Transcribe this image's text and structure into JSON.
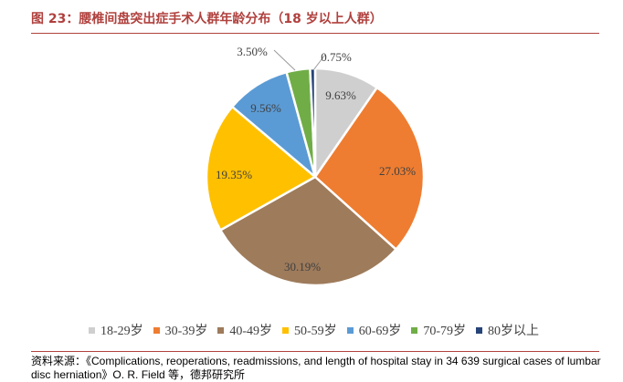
{
  "figure": {
    "title": "图 23：腰椎间盘突出症手术人群年龄分布（18 岁以上人群）",
    "source": "资料来源：《Complications, reoperations, readmissions, and length of hospital stay in 34 639 surgical cases of lumbar disc herniation》O. R. Field 等，德邦研究所"
  },
  "colors": {
    "title": "#b0413e",
    "label_text": "#404040"
  },
  "chart_data": {
    "type": "pie",
    "title": "",
    "start": "12 o'clock",
    "direction": "clockwise",
    "legend_position": "bottom",
    "slices": [
      {
        "label": "18-29岁",
        "value": 9.63,
        "display": "9.63%",
        "color": "#cfcfcf"
      },
      {
        "label": "30-39岁",
        "value": 27.03,
        "display": "27.03%",
        "color": "#ee7d31"
      },
      {
        "label": "40-49岁",
        "value": 30.19,
        "display": "30.19%",
        "color": "#9e7b5b"
      },
      {
        "label": "50-59岁",
        "value": 19.35,
        "display": "19.35%",
        "color": "#ffc000"
      },
      {
        "label": "60-69岁",
        "value": 9.56,
        "display": "9.56%",
        "color": "#5b9bd5"
      },
      {
        "label": "70-79岁",
        "value": 3.5,
        "display": "3.50%",
        "color": "#70ad47"
      },
      {
        "label": "80岁以上",
        "value": 0.75,
        "display": "0.75%",
        "color": "#264478"
      }
    ]
  }
}
